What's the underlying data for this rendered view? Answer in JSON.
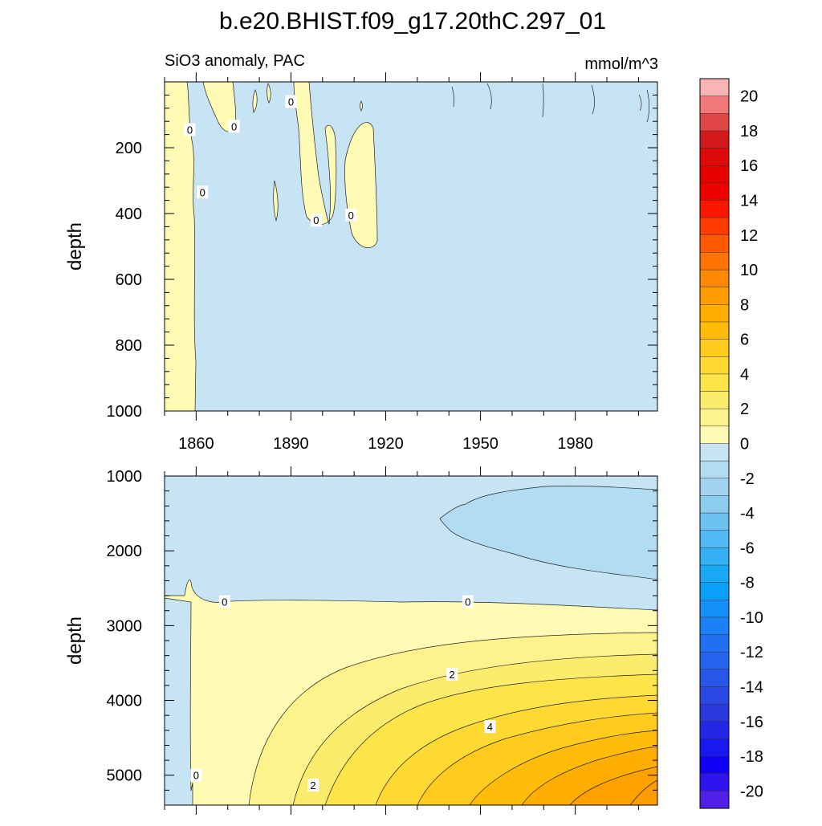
{
  "chart_data": {
    "type": "contour",
    "title": "b.e20.BHIST.f09_g17.20thC.297_01",
    "variable": "SiO3 anomaly, PAC",
    "units": "mmol/m^3",
    "xaxis": {
      "range": [
        1850,
        2006
      ],
      "ticks": [
        1860,
        1890,
        1920,
        1950,
        1980
      ]
    },
    "colorbar": {
      "contour_interval": 1,
      "range": [
        -21,
        21
      ],
      "labels": [
        20,
        18,
        16,
        14,
        12,
        10,
        8,
        6,
        4,
        2,
        0,
        -2,
        -4,
        -6,
        -8,
        -10,
        -12,
        -14,
        -16,
        -18,
        -20
      ],
      "colors": [
        "#f9b4b4",
        "#f07878",
        "#e04646",
        "#d21818",
        "#de0a0a",
        "#e80000",
        "#f20000",
        "#fc1600",
        "#ff3c00",
        "#ff5a00",
        "#ff7300",
        "#ff8800",
        "#ff9c00",
        "#ffad00",
        "#ffbd0a",
        "#ffcc1e",
        "#fed934",
        "#fde449",
        "#fcec6c",
        "#fdf38d",
        "#fffbb4",
        "#c6e4f4",
        "#b2dcf2",
        "#a2d4f0",
        "#8cccee",
        "#6cc2f0",
        "#50b8f2",
        "#34b0f4",
        "#18a8f6",
        "#0aa0f8",
        "#1490f8",
        "#1c80f6",
        "#2070f2",
        "#2464ee",
        "#2856e8",
        "#2a48e2",
        "#2838dc",
        "#2228e6",
        "#1818f0",
        "#1000f8",
        "#3014ee",
        "#5020e8"
      ]
    },
    "panels": [
      {
        "name": "upper (0-1000 m)",
        "ylabel": "depth",
        "ylim": [
          0,
          1000
        ],
        "y_ticks": [
          200,
          400,
          600,
          800,
          1000
        ],
        "contour_labels": [
          {
            "text": "0",
            "year": 1858,
            "depth": 145
          },
          {
            "text": "0",
            "year": 1872,
            "depth": 135
          },
          {
            "text": "0",
            "year": 1890,
            "depth": 60
          },
          {
            "text": "0",
            "year": 1862,
            "depth": 335
          },
          {
            "text": "0",
            "year": 1898,
            "depth": 420
          },
          {
            "text": "0",
            "year": 1909,
            "depth": 405
          }
        ],
        "fields": {
          "warm_column": {
            "value": 0.3,
            "years": [
              1850,
              1860
            ],
            "depth": [
              0,
              1000
            ]
          },
          "cool_background": {
            "value": -0.3
          }
        }
      },
      {
        "name": "lower (1000-5400 m)",
        "ylabel": "depth",
        "ylim": [
          1000,
          5400
        ],
        "y_ticks": [
          1000,
          2000,
          3000,
          4000,
          5000
        ],
        "contour_labels": [
          {
            "text": "0",
            "year": 1869,
            "depth": 2680
          },
          {
            "text": "0",
            "year": 1946,
            "depth": 2680
          },
          {
            "text": "2",
            "year": 1941,
            "depth": 3650
          },
          {
            "text": "4",
            "year": 1953,
            "depth": 4350
          },
          {
            "text": "0",
            "year": 1860,
            "depth": 5000
          },
          {
            "text": "2",
            "year": 1897,
            "depth": 5130
          }
        ],
        "fields": {
          "negative_core": {
            "value": -1.3,
            "years": [
              1937,
              2006
            ],
            "depth": [
              1100,
              2300
            ]
          },
          "positive_growth_max": {
            "value": 7.2,
            "year": 2006,
            "depth": 5400
          }
        }
      }
    ]
  }
}
